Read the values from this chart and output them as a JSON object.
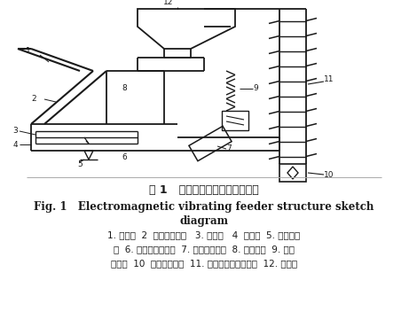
{
  "bg_color": "#ffffff",
  "line_color": "#1a1a1a",
  "title_cn": "图 1   电磁振动给料机结构示意图",
  "title_en_line1": "Fig. 1   Electromagnetic vibrating feeder structure sketch",
  "title_en_line2": "diagram",
  "caption_line1": "1. 引流槽  2  流量计弧形板   3. 测力计   4  支撑点  5. 测力传感",
  "caption_line2": "器  6. 水平振动输送机  7. 水平振动电机  8. 振动料斗  9. 电磁",
  "caption_line3": "振动器  10  垂直振动电机  11. 垂直螺旋振动给料机  12. 贮料斗"
}
